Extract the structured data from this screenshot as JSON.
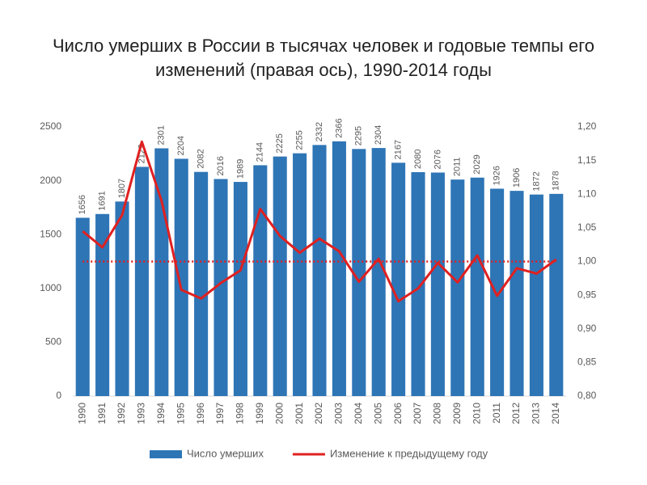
{
  "chart_data": {
    "type": "bar-line",
    "title": "Число умерших в России в тысячах человек и годовые темпы его изменений (правая ось), 1990-2014 годы",
    "categories": [
      "1990",
      "1991",
      "1992",
      "1993",
      "1994",
      "1995",
      "1996",
      "1997",
      "1998",
      "1999",
      "2000",
      "2001",
      "2002",
      "2003",
      "2004",
      "2005",
      "2006",
      "2007",
      "2008",
      "2009",
      "2010",
      "2011",
      "2012",
      "2013",
      "2014"
    ],
    "series": [
      {
        "name": "Число умерших",
        "type": "bar",
        "color": "#2e75b6",
        "values": [
          1656,
          1691,
          1807,
          2129,
          2301,
          2204,
          2082,
          2016,
          1989,
          2144,
          2225,
          2255,
          2332,
          2366,
          2295,
          2304,
          2167,
          2080,
          2076,
          2011,
          2029,
          1926,
          1906,
          1872,
          1878
        ]
      },
      {
        "name": "Изменение к предыдущему году",
        "type": "line",
        "axis": "y2",
        "color": "#e02020",
        "values": [
          1.045,
          1.021,
          1.069,
          1.178,
          1.09,
          0.958,
          0.945,
          0.968,
          0.987,
          1.078,
          1.038,
          1.013,
          1.034,
          1.015,
          0.97,
          1.004,
          0.941,
          0.96,
          0.998,
          0.969,
          1.009,
          0.949,
          0.99,
          0.982,
          1.003
        ]
      }
    ],
    "ylim": [
      0,
      2500
    ],
    "yticks": [
      0,
      500,
      1000,
      1500,
      2000,
      2500
    ],
    "y2lim": [
      0.8,
      1.2
    ],
    "y2ticks": [
      {
        "value": 0.8,
        "label": "0,80"
      },
      {
        "value": 0.85,
        "label": "0,85"
      },
      {
        "value": 0.9,
        "label": "0,90"
      },
      {
        "value": 0.95,
        "label": "0,95"
      },
      {
        "value": 1.0,
        "label": "1,00"
      },
      {
        "value": 1.05,
        "label": "1,05"
      },
      {
        "value": 1.1,
        "label": "1,10"
      },
      {
        "value": 1.15,
        "label": "1,15"
      },
      {
        "value": 1.2,
        "label": "1,20"
      }
    ],
    "y2_reference": 1.0,
    "grid": false
  }
}
